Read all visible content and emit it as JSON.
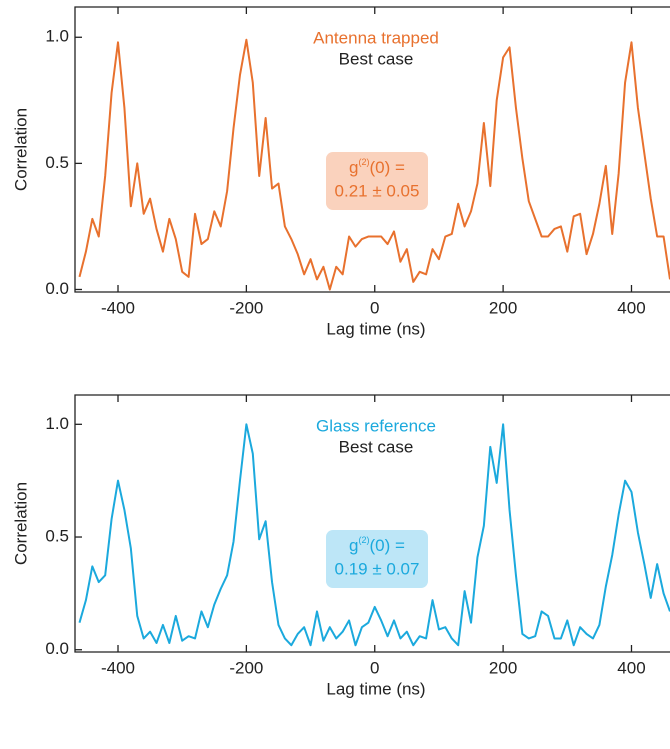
{
  "chart_data": [
    {
      "type": "line",
      "series": [
        {
          "name": "Antenna trapped",
          "color": "#e8712e",
          "values": [
            0.05,
            0.15,
            0.28,
            0.21,
            0.45,
            0.78,
            0.98,
            0.72,
            0.33,
            0.5,
            0.3,
            0.36,
            0.24,
            0.15,
            0.28,
            0.2,
            0.07,
            0.05,
            0.3,
            0.18,
            0.2,
            0.31,
            0.25,
            0.39,
            0.64,
            0.85,
            0.99,
            0.82,
            0.45,
            0.68,
            0.4,
            0.42,
            0.25,
            0.2,
            0.14,
            0.06,
            0.12,
            0.04,
            0.09,
            0.0,
            0.09,
            0.06,
            0.21,
            0.17,
            0.2,
            0.21,
            0.21,
            0.21,
            0.18,
            0.23,
            0.11,
            0.16,
            0.03,
            0.07,
            0.06,
            0.16,
            0.12,
            0.21,
            0.22,
            0.34,
            0.25,
            0.31,
            0.42,
            0.66,
            0.41,
            0.75,
            0.92,
            0.96,
            0.72,
            0.52,
            0.35,
            0.28,
            0.21,
            0.21,
            0.24,
            0.25,
            0.15,
            0.29,
            0.3,
            0.14,
            0.22,
            0.34,
            0.49,
            0.22,
            0.46,
            0.82,
            0.98,
            0.72,
            0.54,
            0.36,
            0.21,
            0.21,
            0.04
          ]
        }
      ],
      "x": [
        -460,
        -450,
        -440,
        -430,
        -420,
        -410,
        -400,
        -390,
        -380,
        -370,
        -360,
        -350,
        -340,
        -330,
        -320,
        -310,
        -300,
        -290,
        -280,
        -270,
        -260,
        -250,
        -240,
        -230,
        -220,
        -210,
        -200,
        -190,
        -180,
        -170,
        -160,
        -150,
        -140,
        -130,
        -120,
        -110,
        -100,
        -90,
        -80,
        -70,
        -60,
        -50,
        -40,
        -30,
        -20,
        -10,
        0,
        10,
        20,
        30,
        40,
        50,
        60,
        70,
        80,
        90,
        100,
        110,
        120,
        130,
        140,
        150,
        160,
        170,
        180,
        190,
        200,
        210,
        220,
        230,
        240,
        250,
        260,
        270,
        280,
        290,
        300,
        310,
        320,
        330,
        340,
        350,
        360,
        370,
        380,
        390,
        400,
        410,
        420,
        430,
        440,
        450,
        460
      ],
      "subtitle": "Best case",
      "g_symbol": "g",
      "g_superscript": "(2)",
      "g_argument": "(0) =",
      "g_value": "0.21 ± 0.05",
      "box_color": "#fad2bd",
      "xlabel": "Lag time (ns)",
      "ylabel": "Correlation",
      "xlim": [
        -467,
        460
      ],
      "ylim": [
        -0.01,
        1.12
      ],
      "xticks": [
        -400,
        -200,
        0,
        200,
        400
      ],
      "yticks": [
        {
          "value": 0,
          "label": "0.0"
        },
        {
          "value": 0.5,
          "label": "0.5"
        },
        {
          "value": 1,
          "label": "1.0"
        }
      ]
    },
    {
      "type": "line",
      "series": [
        {
          "name": "Glass reference",
          "color": "#1ba9dd",
          "values": [
            0.12,
            0.22,
            0.37,
            0.3,
            0.33,
            0.58,
            0.75,
            0.62,
            0.45,
            0.15,
            0.05,
            0.08,
            0.03,
            0.11,
            0.03,
            0.15,
            0.04,
            0.06,
            0.05,
            0.17,
            0.1,
            0.2,
            0.27,
            0.33,
            0.48,
            0.75,
            1.0,
            0.87,
            0.49,
            0.57,
            0.3,
            0.11,
            0.05,
            0.02,
            0.07,
            0.1,
            0.02,
            0.17,
            0.04,
            0.1,
            0.05,
            0.08,
            0.13,
            0.02,
            0.1,
            0.12,
            0.19,
            0.13,
            0.06,
            0.13,
            0.05,
            0.08,
            0.02,
            0.06,
            0.05,
            0.22,
            0.09,
            0.1,
            0.05,
            0.02,
            0.26,
            0.12,
            0.41,
            0.55,
            0.9,
            0.74,
            1.0,
            0.62,
            0.33,
            0.07,
            0.05,
            0.06,
            0.17,
            0.15,
            0.05,
            0.05,
            0.13,
            0.02,
            0.1,
            0.07,
            0.05,
            0.11,
            0.28,
            0.42,
            0.6,
            0.75,
            0.7,
            0.52,
            0.38,
            0.23,
            0.38,
            0.25,
            0.17
          ]
        }
      ],
      "x": [
        -460,
        -450,
        -440,
        -430,
        -420,
        -410,
        -400,
        -390,
        -380,
        -370,
        -360,
        -350,
        -340,
        -330,
        -320,
        -310,
        -300,
        -290,
        -280,
        -270,
        -260,
        -250,
        -240,
        -230,
        -220,
        -210,
        -200,
        -190,
        -180,
        -170,
        -160,
        -150,
        -140,
        -130,
        -120,
        -110,
        -100,
        -90,
        -80,
        -70,
        -60,
        -50,
        -40,
        -30,
        -20,
        -10,
        0,
        10,
        20,
        30,
        40,
        50,
        60,
        70,
        80,
        90,
        100,
        110,
        120,
        130,
        140,
        150,
        160,
        170,
        180,
        190,
        200,
        210,
        220,
        230,
        240,
        250,
        260,
        270,
        280,
        290,
        300,
        310,
        320,
        330,
        340,
        350,
        360,
        370,
        380,
        390,
        400,
        410,
        420,
        430,
        440,
        450,
        460
      ],
      "subtitle": "Best case",
      "g_symbol": "g",
      "g_superscript": "(2)",
      "g_argument": "(0) =",
      "g_value": "0.19 ± 0.07",
      "box_color": "#bde6f7",
      "xlabel": "Lag time (ns)",
      "ylabel": "Correlation",
      "xlim": [
        -467,
        460
      ],
      "ylim": [
        -0.01,
        1.13
      ],
      "xticks": [
        -400,
        -200,
        0,
        200,
        400
      ],
      "yticks": [
        {
          "value": 0,
          "label": "0.0"
        },
        {
          "value": 0.5,
          "label": "0.5"
        },
        {
          "value": 1,
          "label": "1.0"
        }
      ]
    }
  ]
}
